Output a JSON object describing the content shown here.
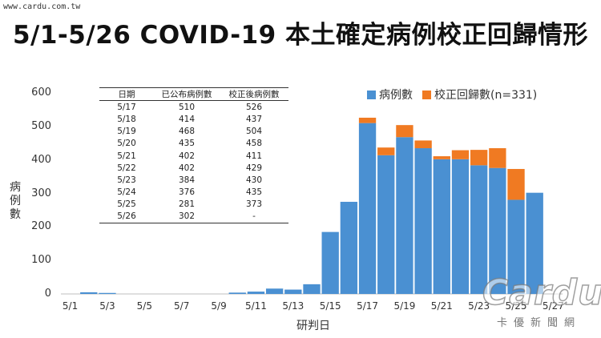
{
  "watermark_top": "www.cardu.com.tw",
  "logo": {
    "text": "Cardu",
    "sub": "卡優新聞網"
  },
  "chart_data": {
    "type": "bar",
    "title": "5/1-5/26 COVID-19 本土確定病例校正回歸情形",
    "xlabel": "研判日",
    "ylabel": "病例數",
    "ylim": [
      0,
      600
    ],
    "yticks": [
      0,
      100,
      200,
      300,
      400,
      500,
      600
    ],
    "stacked": true,
    "grid": false,
    "legend": "top-right",
    "colors": {
      "cases": "#4a90d2",
      "correction": "#f07a22"
    },
    "categories": [
      "5/1",
      "5/2",
      "5/3",
      "5/4",
      "5/5",
      "5/6",
      "5/7",
      "5/8",
      "5/9",
      "5/10",
      "5/11",
      "5/12",
      "5/13",
      "5/14",
      "5/15",
      "5/16",
      "5/17",
      "5/18",
      "5/19",
      "5/20",
      "5/21",
      "5/22",
      "5/23",
      "5/24",
      "5/25",
      "5/26",
      "5/27"
    ],
    "xtick_labels": [
      "5/1",
      "5/3",
      "5/5",
      "5/7",
      "5/9",
      "5/11",
      "5/13",
      "5/15",
      "5/17",
      "5/19",
      "5/21",
      "5/23",
      "5/25",
      "5/27"
    ],
    "series": [
      {
        "name": "病例數",
        "values": [
          0,
          5,
          3,
          0,
          0,
          0,
          0,
          0,
          0,
          4,
          7,
          16,
          13,
          29,
          185,
          275,
          510,
          414,
          468,
          435,
          402,
          402,
          384,
          376,
          281,
          302,
          0
        ]
      },
      {
        "name": "校正回歸數(n=331)",
        "values": [
          0,
          0,
          0,
          0,
          0,
          0,
          0,
          0,
          0,
          0,
          0,
          0,
          0,
          0,
          0,
          0,
          16,
          23,
          36,
          23,
          9,
          27,
          46,
          59,
          92,
          0,
          0
        ]
      }
    ],
    "table": {
      "headers": [
        "日期",
        "已公布病例數",
        "校正後病例數"
      ],
      "rows": [
        [
          "5/17",
          "510",
          "526"
        ],
        [
          "5/18",
          "414",
          "437"
        ],
        [
          "5/19",
          "468",
          "504"
        ],
        [
          "5/20",
          "435",
          "458"
        ],
        [
          "5/21",
          "402",
          "411"
        ],
        [
          "5/22",
          "402",
          "429"
        ],
        [
          "5/23",
          "384",
          "430"
        ],
        [
          "5/24",
          "376",
          "435"
        ],
        [
          "5/25",
          "281",
          "373"
        ],
        [
          "5/26",
          "302",
          "-"
        ]
      ]
    }
  }
}
